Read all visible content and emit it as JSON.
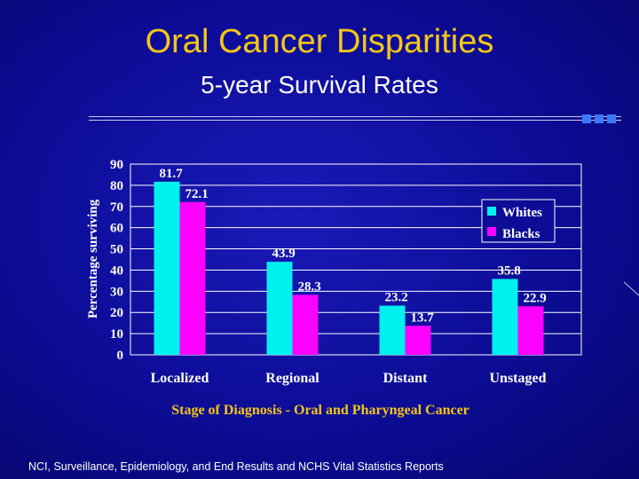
{
  "slide": {
    "title": "Oral Cancer Disparities",
    "subtitle": "5-year Survival Rates",
    "source": "NCI, Surveillance, Epidemiology, and End Results and NCHS Vital Statistics Reports"
  },
  "colors": {
    "title": "#f5c518",
    "background": "#0c0c96",
    "whites": "#00f0f0",
    "blacks": "#ff00ff"
  },
  "chart_data": {
    "type": "bar",
    "categories": [
      "Localized",
      "Regional",
      "Distant",
      "Unstaged"
    ],
    "series": [
      {
        "name": "Whites",
        "values": [
          81.7,
          43.9,
          23.2,
          35.8
        ],
        "labels": [
          "81.7",
          "43.9",
          "23.2",
          "35.8"
        ]
      },
      {
        "name": "Blacks",
        "values": [
          72.1,
          28.3,
          13.7,
          22.9
        ],
        "labels": [
          "72.1",
          "28.3",
          "13.7",
          "22.9"
        ]
      }
    ],
    "ylim": [
      0,
      90
    ],
    "yticks": [
      "0",
      "10",
      "20",
      "30",
      "40",
      "50",
      "60",
      "70",
      "80",
      "90"
    ],
    "ylabel": "Percentage surviving",
    "xlabel": "Stage of Diagnosis - Oral and Pharyngeal Cancer",
    "legend_position": "right"
  }
}
